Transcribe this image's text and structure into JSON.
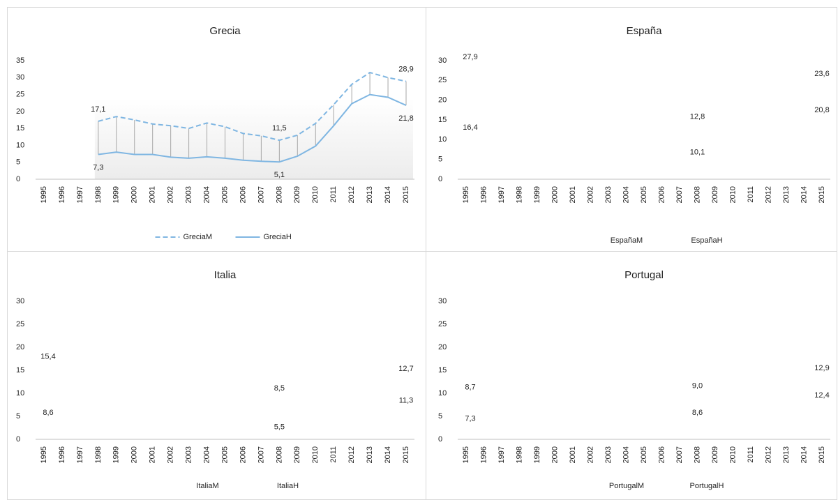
{
  "chart_data": [
    {
      "type": "line",
      "title": "Grecia",
      "categories": [
        "1995",
        "1996",
        "1997",
        "1998",
        "1999",
        "2000",
        "2001",
        "2002",
        "2003",
        "2004",
        "2005",
        "2006",
        "2007",
        "2008",
        "2009",
        "2010",
        "2011",
        "2012",
        "2013",
        "2014",
        "2015"
      ],
      "series": [
        {
          "name": "GreciaM",
          "color": "#7fb6e2",
          "dash": true,
          "values": [
            null,
            null,
            null,
            17.1,
            18.5,
            17.5,
            16.3,
            15.8,
            15.0,
            16.6,
            15.5,
            13.5,
            12.8,
            11.5,
            13.0,
            16.5,
            22.0,
            28.0,
            31.5,
            30.0,
            28.9
          ],
          "value_labels": [
            null,
            null,
            null,
            "17,1",
            null,
            null,
            null,
            null,
            null,
            null,
            null,
            null,
            null,
            "11,5",
            null,
            null,
            null,
            null,
            null,
            null,
            "28,9"
          ]
        },
        {
          "name": "GreciaH",
          "color": "#7fb6e2",
          "dash": false,
          "values": [
            null,
            null,
            null,
            7.3,
            8.0,
            7.3,
            7.3,
            6.5,
            6.2,
            6.6,
            6.2,
            5.6,
            5.3,
            5.1,
            6.8,
            9.8,
            15.8,
            22.3,
            25.0,
            24.2,
            21.8
          ],
          "value_labels": [
            null,
            null,
            null,
            "7,3",
            null,
            null,
            null,
            null,
            null,
            null,
            null,
            null,
            null,
            "5,1",
            null,
            null,
            null,
            null,
            null,
            null,
            "21,8"
          ]
        }
      ],
      "ylim": [
        0,
        35
      ],
      "yticks": [
        0,
        5,
        10,
        15,
        20,
        25,
        30,
        35
      ],
      "drop_lines": true,
      "legend": "bottom"
    },
    {
      "type": "line",
      "title": "España",
      "categories": [
        "1995",
        "1996",
        "1997",
        "1998",
        "1999",
        "2000",
        "2001",
        "2002",
        "2003",
        "2004",
        "2005",
        "2006",
        "2007",
        "2008",
        "2009",
        "2010",
        "2011",
        "2012",
        "2013",
        "2014",
        "2015"
      ],
      "series": [
        {
          "name": "EspañaM",
          "values": [
            27.9,
            null,
            null,
            null,
            null,
            null,
            null,
            null,
            null,
            null,
            null,
            null,
            null,
            12.8,
            null,
            null,
            null,
            null,
            null,
            null,
            23.6
          ],
          "value_labels": [
            "27,9",
            null,
            null,
            null,
            null,
            null,
            null,
            null,
            null,
            null,
            null,
            null,
            null,
            "12,8",
            null,
            null,
            null,
            null,
            null,
            null,
            "23,6"
          ]
        },
        {
          "name": "EspañaH",
          "values": [
            16.4,
            null,
            null,
            null,
            null,
            null,
            null,
            null,
            null,
            null,
            null,
            null,
            null,
            10.1,
            null,
            null,
            null,
            null,
            null,
            null,
            20.8
          ],
          "value_labels": [
            "16,4",
            null,
            null,
            null,
            null,
            null,
            null,
            null,
            null,
            null,
            null,
            null,
            null,
            "10,1",
            null,
            null,
            null,
            null,
            null,
            null,
            "20,8"
          ]
        }
      ],
      "ylim": [
        0,
        30
      ],
      "yticks": [
        0,
        5,
        10,
        15,
        20,
        25,
        30
      ],
      "legend": "bottom"
    },
    {
      "type": "line",
      "title": "Italia",
      "categories": [
        "1995",
        "1996",
        "1997",
        "1998",
        "1999",
        "2000",
        "2001",
        "2002",
        "2003",
        "2004",
        "2005",
        "2006",
        "2007",
        "2008",
        "2009",
        "2010",
        "2011",
        "2012",
        "2013",
        "2014",
        "2015"
      ],
      "series": [
        {
          "name": "ItaliaM",
          "values": [
            15.4,
            null,
            null,
            null,
            null,
            null,
            null,
            null,
            null,
            null,
            null,
            null,
            null,
            8.5,
            null,
            null,
            null,
            null,
            null,
            null,
            12.7
          ],
          "value_labels": [
            "15,4",
            null,
            null,
            null,
            null,
            null,
            null,
            null,
            null,
            null,
            null,
            null,
            null,
            "8,5",
            null,
            null,
            null,
            null,
            null,
            null,
            "12,7"
          ]
        },
        {
          "name": "ItaliaH",
          "values": [
            8.6,
            null,
            null,
            null,
            null,
            null,
            null,
            null,
            null,
            null,
            null,
            null,
            null,
            5.5,
            null,
            null,
            null,
            null,
            null,
            null,
            11.3
          ],
          "value_labels": [
            "8,6",
            null,
            null,
            null,
            null,
            null,
            null,
            null,
            null,
            null,
            null,
            null,
            null,
            "5,5",
            null,
            null,
            null,
            null,
            null,
            null,
            "11,3"
          ]
        }
      ],
      "ylim": [
        0,
        30
      ],
      "yticks": [
        0,
        5,
        10,
        15,
        20,
        25,
        30
      ],
      "legend": "bottom"
    },
    {
      "type": "line",
      "title": "Portugal",
      "categories": [
        "1995",
        "1996",
        "1997",
        "1998",
        "1999",
        "2000",
        "2001",
        "2002",
        "2003",
        "2004",
        "2005",
        "2006",
        "2007",
        "2008",
        "2009",
        "2010",
        "2011",
        "2012",
        "2013",
        "2014",
        "2015"
      ],
      "series": [
        {
          "name": "PortugalM",
          "values": [
            8.7,
            null,
            null,
            null,
            null,
            null,
            null,
            null,
            null,
            null,
            null,
            null,
            null,
            9.0,
            null,
            null,
            null,
            null,
            null,
            null,
            12.9
          ],
          "value_labels": [
            "8,7",
            null,
            null,
            null,
            null,
            null,
            null,
            null,
            null,
            null,
            null,
            null,
            null,
            "9,0",
            null,
            null,
            null,
            null,
            null,
            null,
            "12,9"
          ]
        },
        {
          "name": "PortugalH",
          "values": [
            7.3,
            null,
            null,
            null,
            null,
            null,
            null,
            null,
            null,
            null,
            null,
            null,
            null,
            8.6,
            null,
            null,
            null,
            null,
            null,
            null,
            12.4
          ],
          "value_labels": [
            "7,3",
            null,
            null,
            null,
            null,
            null,
            null,
            null,
            null,
            null,
            null,
            null,
            null,
            "8,6",
            null,
            null,
            null,
            null,
            null,
            null,
            "12,4"
          ]
        }
      ],
      "ylim": [
        0,
        30
      ],
      "yticks": [
        0,
        5,
        10,
        15,
        20,
        25,
        30
      ],
      "legend": "bottom"
    }
  ]
}
